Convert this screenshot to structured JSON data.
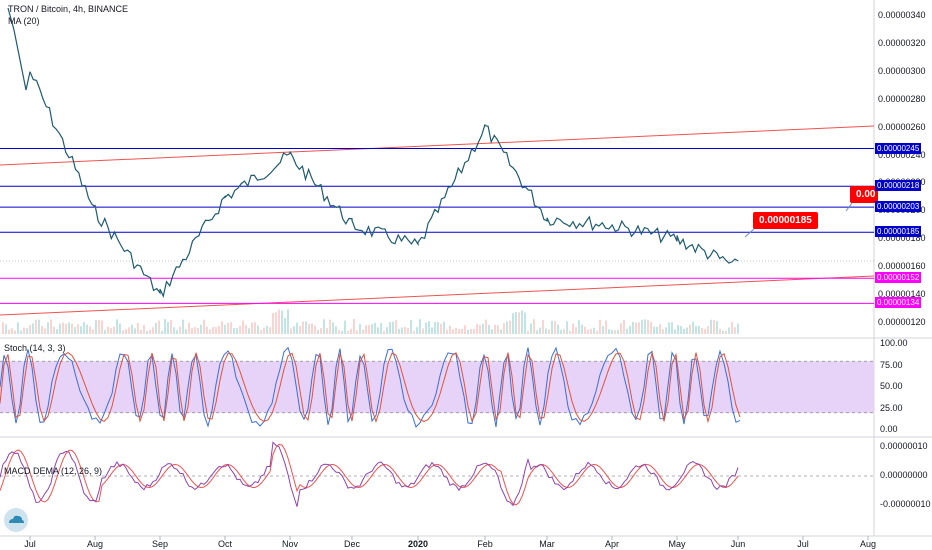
{
  "header": {
    "symbol_line": "TRON / Bitcoin, 4h, BINANCE",
    "ma_label": "MA (20)"
  },
  "price_axis": {
    "ticks": [
      "0.00000340",
      "0.00000320",
      "0.00000300",
      "0.00000280",
      "0.00000260",
      "0.00000240",
      "0.00000220",
      "0.00000200",
      "0.00000180",
      "0.00000160",
      "0.00000140",
      "0.00000120"
    ],
    "tagged_levels": [
      {
        "text": "0.00000245",
        "value": 2.45e-06,
        "color": "#0000cc"
      },
      {
        "text": "0.00000218",
        "value": 2.18e-06,
        "color": "#0000cc"
      },
      {
        "text": "0.00000203",
        "value": 2.03e-06,
        "color": "#0000cc"
      },
      {
        "text": "0.00000185",
        "value": 1.85e-06,
        "color": "#0000cc"
      },
      {
        "text": "0.00000152",
        "value": 1.52e-06,
        "color": "#ff00ff"
      },
      {
        "text": "0.00000134",
        "value": 1.34e-06,
        "color": "#ff00ff"
      }
    ]
  },
  "callouts": {
    "main": "0.00000185",
    "partial": "0.00"
  },
  "stoch": {
    "label": "Stoch (14, 3, 3)",
    "ticks": [
      "100.00",
      "75.00",
      "50.00",
      "25.00",
      "0.00"
    ],
    "band_color": "#e6d3f7"
  },
  "macd": {
    "label": "MACD DEMA (12, 26, 9)",
    "ticks": [
      "0.00000010",
      "0.00000000",
      "-0.00000010"
    ]
  },
  "time_axis": {
    "labels": [
      "Jul",
      "Aug",
      "Sep",
      "Oct",
      "Nov",
      "Dec",
      "2020",
      "Feb",
      "Mar",
      "Apr",
      "May",
      "Jun",
      "Jul",
      "Aug"
    ]
  },
  "colors": {
    "candle": "#1e5b6e",
    "horizontal_level": "#0000cc",
    "support_level": "#ff00ff",
    "trendline": "#ef5350",
    "stoch_k": "#3b6fd6",
    "stoch_d": "#e0523d",
    "macd_line": "#8e44ad",
    "signal_line": "#ef5350"
  },
  "chart_data": {
    "type": "line",
    "title": "TRON / Bitcoin, 4h, BINANCE",
    "xlabel": "",
    "ylabel": "",
    "x": [
      "Jul",
      "Aug",
      "Sep",
      "Oct",
      "Nov",
      "Dec",
      "2020",
      "Feb",
      "Mar",
      "Apr",
      "May",
      "Jun"
    ],
    "series": [
      {
        "name": "TRON / Bitcoin",
        "values": [
          3e-06,
          2e-06,
          1.4e-06,
          2.1e-06,
          2.4e-06,
          1.9e-06,
          1.75e-06,
          2.6e-06,
          1.95e-06,
          1.9e-06,
          1.8e-06,
          1.6e-06
        ]
      }
    ],
    "ylim": [
      1.1e-06,
      3.5e-06
    ],
    "levels": [
      2.45e-06,
      2.18e-06,
      2.03e-06,
      1.85e-06,
      1.52e-06,
      1.34e-06
    ]
  }
}
